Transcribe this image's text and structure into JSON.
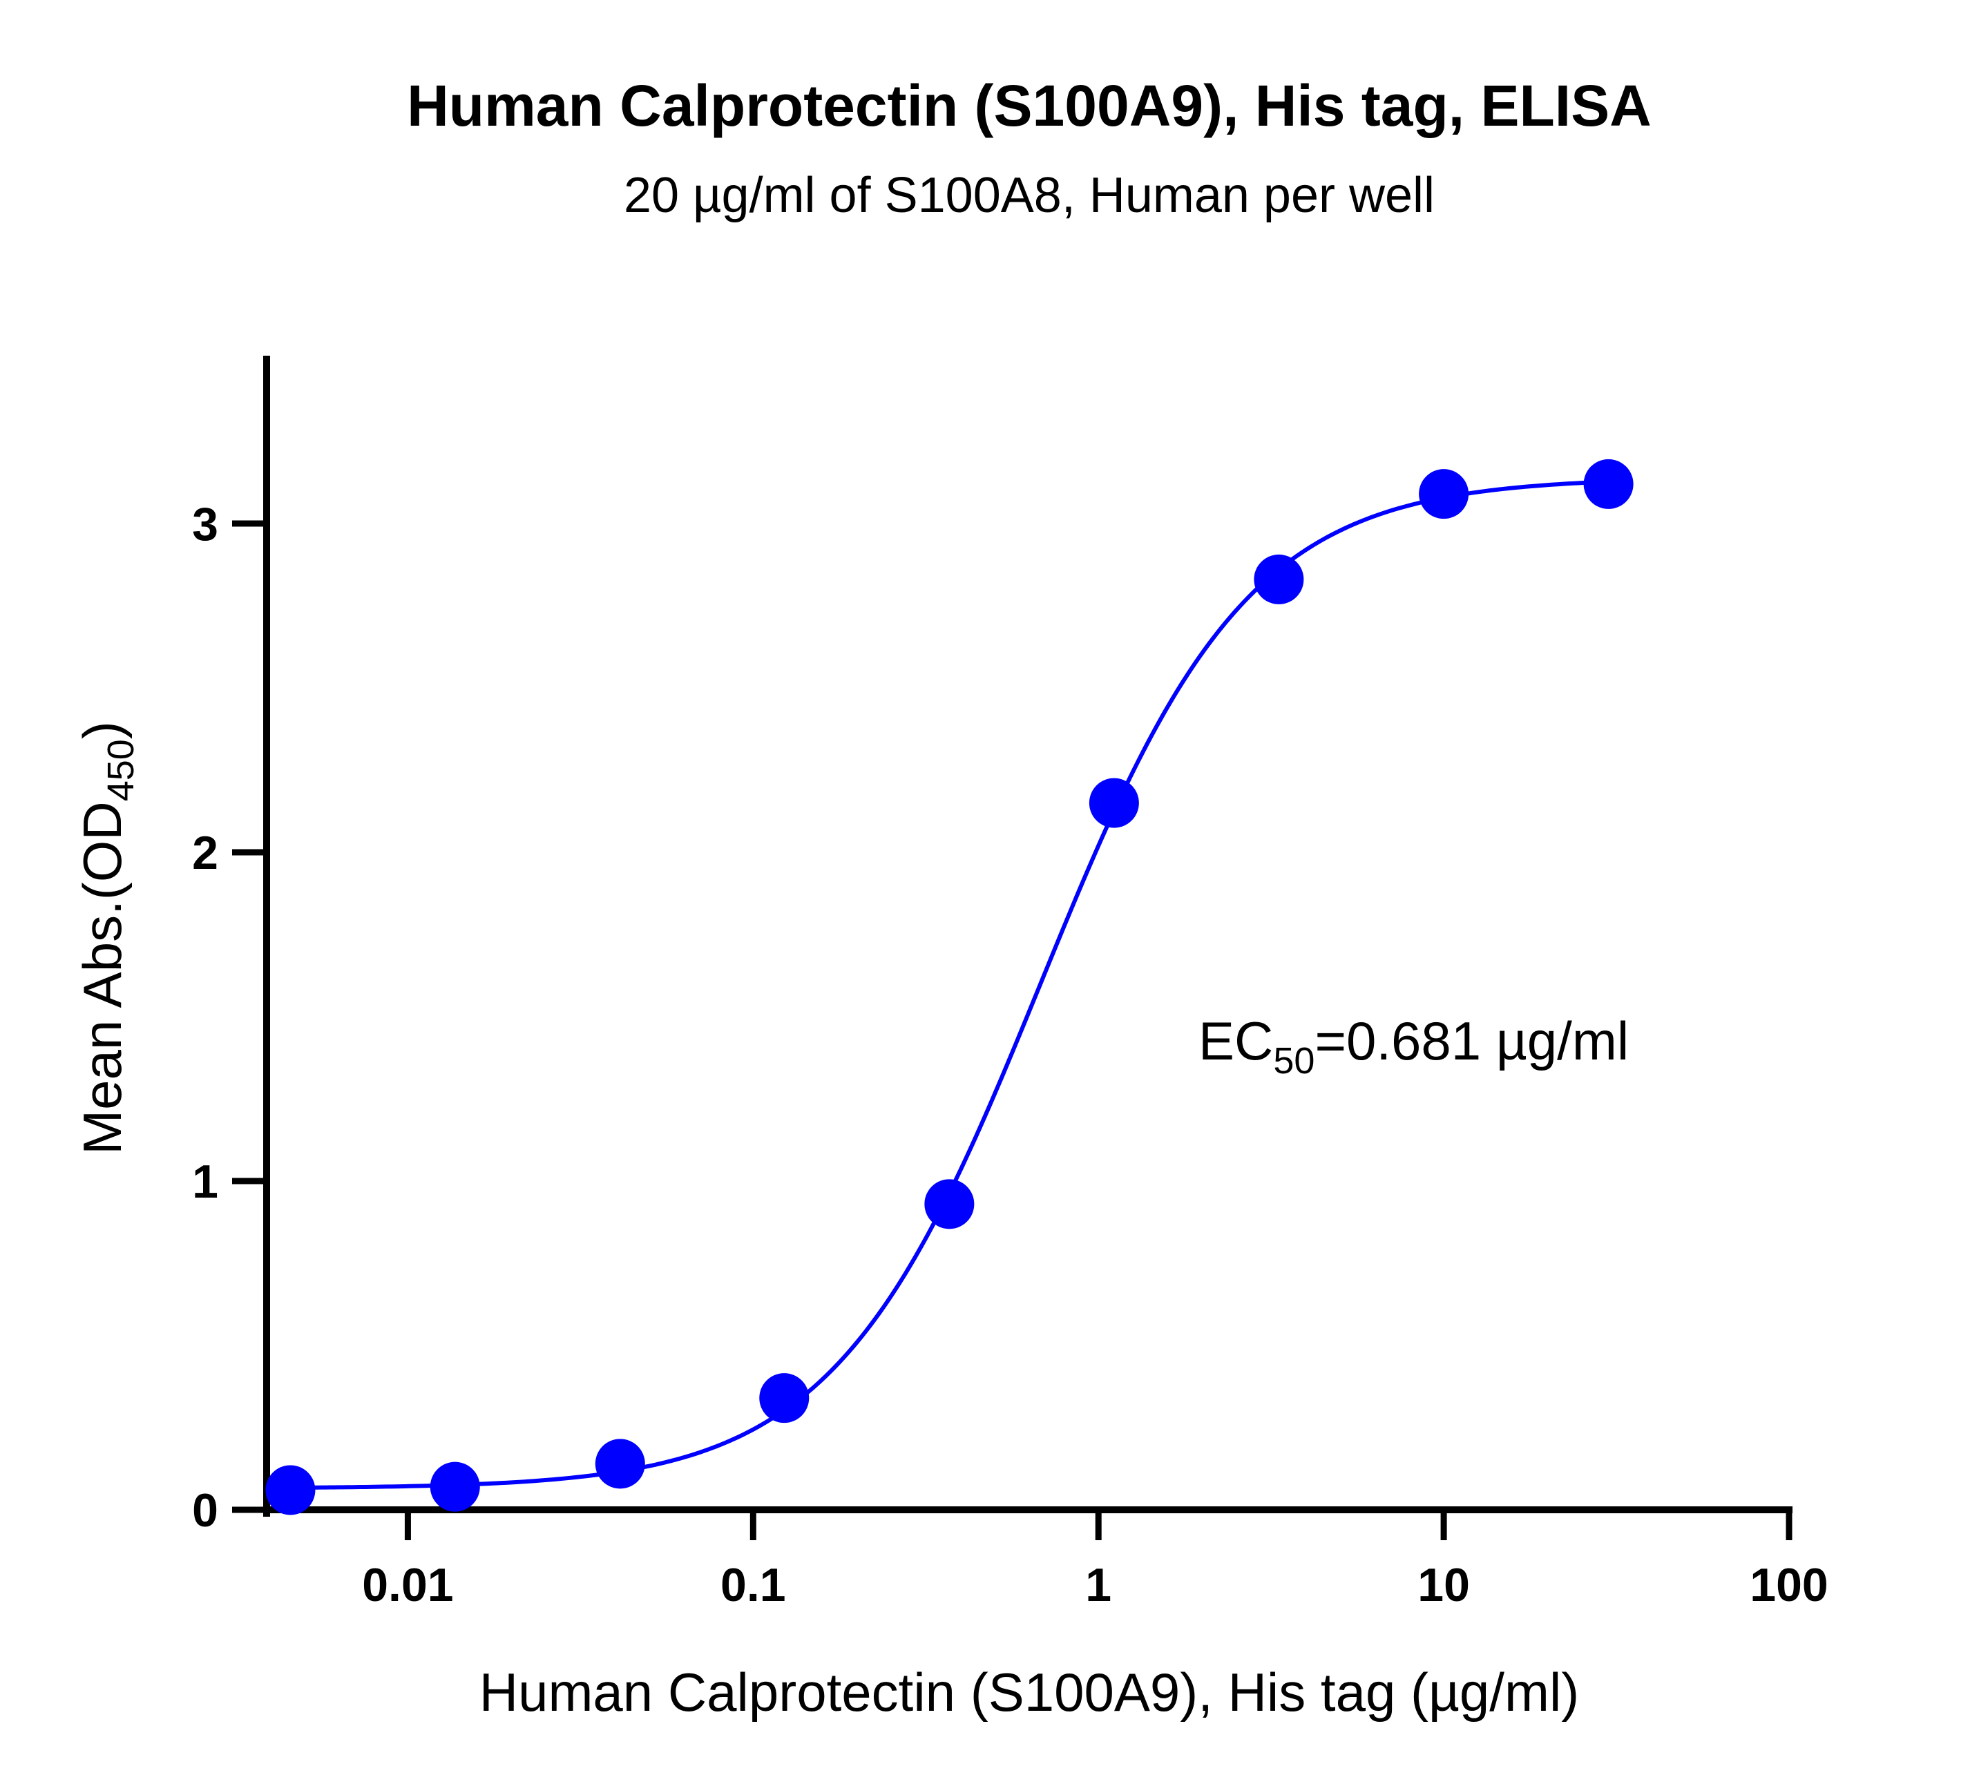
{
  "chart_data": {
    "type": "scatter",
    "title": "Human Calprotectin (S100A9), His tag, ELISA",
    "subtitle": "20 µg/ml of S100A8, Human per well",
    "xlabel": "Human Calprotectin (S100A9), His tag (µg/ml)",
    "ylabel_main": "Mean Abs.(OD",
    "ylabel_sub": "450",
    "ylabel_close": ")",
    "x_scale": "log",
    "xlim": [
      0.0039,
      100
    ],
    "ylim": [
      0,
      3.5
    ],
    "x_ticks": [
      0.01,
      0.1,
      1,
      10,
      100
    ],
    "x_tick_labels": [
      "0.01",
      "0.1",
      "1",
      "10",
      "100"
    ],
    "y_ticks": [
      0,
      1,
      2,
      3
    ],
    "y_tick_labels": [
      "0",
      "1",
      "2",
      "3"
    ],
    "grid": false,
    "series": [
      {
        "x": [
          0.00457,
          0.0137,
          0.0412,
          0.123,
          0.37,
          1.11,
          3.33,
          10,
          30
        ],
        "y": [
          0.06,
          0.07,
          0.14,
          0.34,
          0.93,
          2.15,
          2.83,
          3.09,
          3.12
        ],
        "color": "#0000ff"
      }
    ],
    "fit": {
      "model": "4PL",
      "bottom": 0.065,
      "top": 3.14,
      "ec50": 0.681,
      "hill": 1.45,
      "color": "#0000ff"
    },
    "annotation": {
      "prefix": "EC",
      "sub": "50",
      "suffix": "=0.681 µg/ml"
    }
  }
}
